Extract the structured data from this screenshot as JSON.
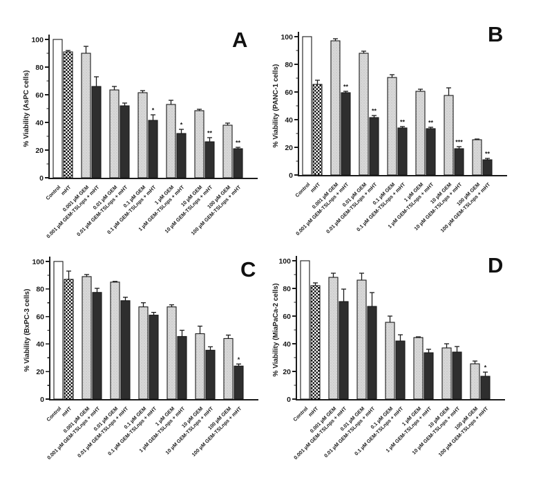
{
  "figure": {
    "description": "Four-panel bar chart figure showing % viability of pancreatic cancer cell lines treated with GEM or GEM-TSLnps + mHT",
    "panel_letters": [
      "A",
      "B",
      "C",
      "D"
    ]
  },
  "chart_config": {
    "type": "bar",
    "ylim": [
      0,
      100
    ],
    "yticks": [
      0,
      20,
      40,
      60,
      80,
      100
    ],
    "minor_yticks": [
      10,
      30,
      50,
      70,
      90
    ],
    "grid": "off",
    "legend": "none",
    "bar_styles": [
      "white",
      "checker",
      "stipple",
      "solid",
      "stipple",
      "solid",
      "stipple",
      "solid",
      "stipple",
      "solid",
      "stipple",
      "solid",
      "stipple",
      "solid"
    ],
    "colors": {
      "bar_white": "#ffffff",
      "bar_light": "#d8d8d8",
      "bar_light_dot": "#a9a9a9",
      "bar_dark": "#2e2e2e",
      "axis": "#1a1a1a",
      "background": "#ffffff"
    }
  },
  "chart_data": [
    {
      "type": "bar",
      "panel_label": "A",
      "ylabel": "% Viability (AsPC cells)",
      "categories": [
        "Control",
        "mHT",
        "0.001 µM GEM",
        "0.001 µM GEM-TSLnps + mHT",
        "0.01 µM GEM",
        "0.01 µM GEM-TSLnps + mHT",
        "0.1 µM GEM",
        "0.1 µM GEM-TSLnps + mHT",
        "1 µM GEM",
        "1 µM GEM-TSLnps + mHT",
        "10 µM GEM",
        "10 µM GEM-TSLnps + mHT",
        "100 µM GEM",
        "100 µM GEM-TSLnps + mHT"
      ],
      "values": [
        100,
        91,
        90,
        66,
        63.5,
        52,
        61.5,
        41.5,
        53,
        32,
        48.5,
        26,
        38,
        21
      ],
      "errors": [
        0,
        1,
        5,
        7,
        2.5,
        2,
        1.5,
        4,
        3,
        3,
        1,
        3,
        1.5,
        1
      ],
      "significance": [
        "",
        "",
        "",
        "",
        "",
        "",
        "",
        "*",
        "",
        "*",
        "",
        "**",
        "",
        "**"
      ]
    },
    {
      "type": "bar",
      "panel_label": "B",
      "ylabel": "% Viability (PANC-1 cells)",
      "categories": [
        "Control",
        "mHT",
        "0.001 µM GEM",
        "0.001 µM GEM-TSLnps + mHT",
        "0.01 µM GEM",
        "0.01 µM GEM-TSLnps + mHT",
        "0.1 µM GEM",
        "0.1 µM GEM-TSLnps + mHT",
        "1 µM GEM",
        "1 µM GEM-TSLnps + mHT",
        "10 µM GEM",
        "10 µM GEM-TSLnps + mHT",
        "100 µM GEM",
        "100 µM GEM-TSLnps + mHT"
      ],
      "values": [
        100,
        65.5,
        97,
        59.5,
        88,
        41.5,
        70.5,
        34,
        60.5,
        33.5,
        57.5,
        19,
        25.5,
        11
      ],
      "errors": [
        0,
        3,
        1.5,
        1,
        1.5,
        1.5,
        2,
        1,
        1.5,
        1,
        5.5,
        1.5,
        0.5,
        1
      ],
      "significance": [
        "",
        "",
        "",
        "**",
        "",
        "**",
        "",
        "**",
        "",
        "**",
        "",
        "***",
        "",
        "**"
      ]
    },
    {
      "type": "bar",
      "panel_label": "C",
      "ylabel": "% Viability (BxPC-3 cells)",
      "categories": [
        "Control",
        "mHT",
        "0.001 µM GEM",
        "0.001 µM GEM-TSLnps + mHT",
        "0.01 µM GEM",
        "0.01 µM GEM-TSLnps + mHT",
        "0.1 µM GEM",
        "0.1 µM GEM-TSLnps + mHT",
        "1 µM GEM",
        "1 µM GEM-TSLnps + mHT",
        "10 µM GEM",
        "10 µM GEM-TSLnps + mHT",
        "100 µM GEM",
        "100 µM GEM-TSLnps + mHT"
      ],
      "values": [
        100,
        87,
        89,
        77.5,
        85,
        71.5,
        67,
        61,
        67,
        45.5,
        47.5,
        35.5,
        44,
        24
      ],
      "errors": [
        0,
        6,
        1.5,
        3,
        0.5,
        2.5,
        3,
        2,
        1.5,
        4.5,
        5.5,
        2.5,
        2.5,
        1.5
      ],
      "significance": [
        "",
        "",
        "",
        "",
        "",
        "",
        "",
        "",
        "",
        "",
        "",
        "",
        "",
        "*"
      ]
    },
    {
      "type": "bar",
      "panel_label": "D",
      "ylabel": "% Viability (MiaPaCa-2 cells)",
      "categories": [
        "Control",
        "mHT",
        "0.001 µM GEM",
        "0.001 µM GEM-TSLnps + mHT",
        "0.01 µM GEM",
        "0.01 µM GEM-TSLnps + mHT",
        "0.1 µM GEM",
        "0.1 µM GEM-TSLnps + mHT",
        "1 µM GEM",
        "1 µM GEM-TSLnps + mHT",
        "10 µM GEM",
        "10 µM GEM-TSLnps + mHT",
        "100 µM GEM",
        "100 µM GEM-TSLnps + mHT"
      ],
      "values": [
        100,
        82,
        88,
        70.5,
        86,
        67,
        55.5,
        42,
        44.5,
        33.5,
        37,
        34,
        25.5,
        16.5
      ],
      "errors": [
        0,
        2,
        3,
        9,
        5,
        10,
        4.5,
        4.5,
        0.5,
        2.5,
        3,
        4,
        2,
        3
      ],
      "significance": [
        "",
        "",
        "",
        "",
        "",
        "",
        "",
        "",
        "",
        "",
        "",
        "",
        "",
        "*"
      ]
    }
  ]
}
